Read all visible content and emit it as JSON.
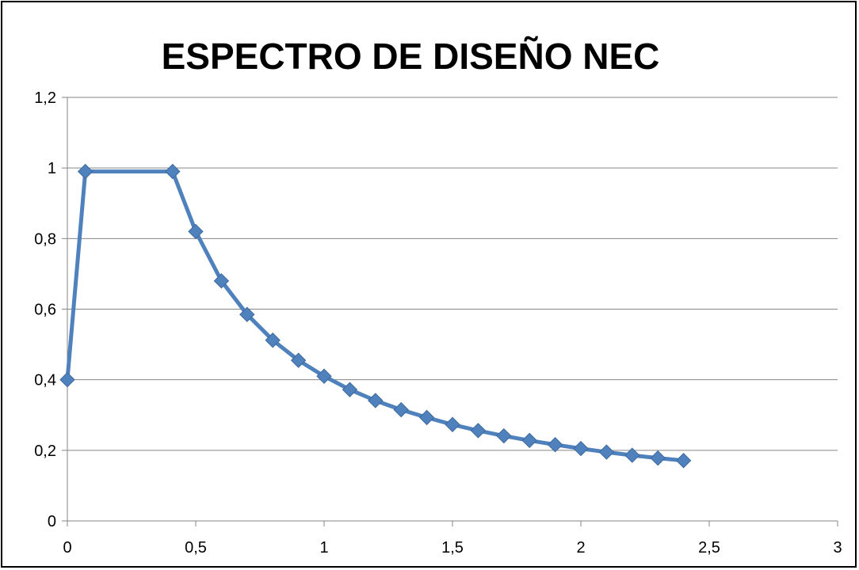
{
  "chart_data": {
    "type": "line",
    "title": "ESPECTRO DE DISEÑO NEC",
    "xlabel": "",
    "ylabel": "",
    "xlim": [
      0,
      3
    ],
    "ylim": [
      0,
      1.2
    ],
    "x_ticks": [
      {
        "value": 0,
        "label": "0"
      },
      {
        "value": 0.5,
        "label": "0,5"
      },
      {
        "value": 1,
        "label": "1"
      },
      {
        "value": 1.5,
        "label": "1,5"
      },
      {
        "value": 2,
        "label": "2"
      },
      {
        "value": 2.5,
        "label": "2,5"
      },
      {
        "value": 3,
        "label": "3"
      }
    ],
    "y_ticks": [
      {
        "value": 0,
        "label": "0"
      },
      {
        "value": 0.2,
        "label": "0,2"
      },
      {
        "value": 0.4,
        "label": "0,4"
      },
      {
        "value": 0.6,
        "label": "0,6"
      },
      {
        "value": 0.8,
        "label": "0,8"
      },
      {
        "value": 1,
        "label": "1"
      },
      {
        "value": 1.2,
        "label": "1,2"
      }
    ],
    "grid": "horizontal",
    "legend": "none",
    "series": [
      {
        "color": "#4F81BD",
        "marker": "diamond",
        "x": [
          0,
          0.07,
          0.41,
          0.5,
          0.6,
          0.7,
          0.8,
          0.9,
          1.0,
          1.1,
          1.2,
          1.3,
          1.4,
          1.5,
          1.6,
          1.7,
          1.8,
          1.9,
          2.0,
          2.1,
          2.2,
          2.3,
          2.4
        ],
        "y": [
          0.4,
          0.99,
          0.99,
          0.82,
          0.68,
          0.585,
          0.512,
          0.455,
          0.41,
          0.372,
          0.341,
          0.315,
          0.293,
          0.273,
          0.256,
          0.241,
          0.228,
          0.216,
          0.205,
          0.195,
          0.186,
          0.178,
          0.171
        ]
      }
    ]
  }
}
